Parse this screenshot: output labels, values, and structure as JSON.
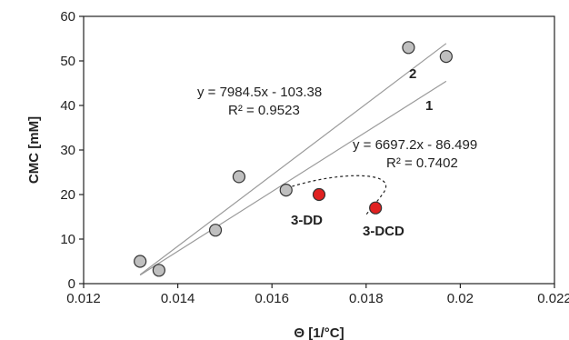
{
  "chart_data": {
    "type": "scatter",
    "xlabel": "Θ [1/°C]",
    "ylabel": "CMC [mM]",
    "xlim": [
      0.012,
      0.022
    ],
    "ylim": [
      0,
      60
    ],
    "xticks": [
      0.012,
      0.014,
      0.016,
      0.018,
      0.02,
      0.022
    ],
    "xtick_labels": [
      "0.012",
      "0.014",
      "0.016",
      "0.018",
      "0.02",
      "0.022"
    ],
    "yticks": [
      0,
      10,
      20,
      30,
      40,
      50,
      60
    ],
    "ytick_labels": [
      "0",
      "10",
      "20",
      "30",
      "40",
      "50",
      "60"
    ],
    "grid": false,
    "series": [
      {
        "color": "#bfbfbf",
        "points": [
          {
            "x": 0.0132,
            "y": 5
          },
          {
            "x": 0.0136,
            "y": 3
          },
          {
            "x": 0.0148,
            "y": 12
          },
          {
            "x": 0.0153,
            "y": 24
          },
          {
            "x": 0.0163,
            "y": 21
          },
          {
            "x": 0.0189,
            "y": 53
          },
          {
            "x": 0.0197,
            "y": 51
          }
        ]
      },
      {
        "color": "#e02020",
        "points": [
          {
            "x": 0.017,
            "y": 20,
            "label": "3-DD"
          },
          {
            "x": 0.0182,
            "y": 17,
            "label": "3-DCD"
          }
        ]
      }
    ],
    "trendlines": [
      {
        "label": "2",
        "slope": 7984.5,
        "intercept": -103.38,
        "x_range": [
          0.0132,
          0.0197
        ],
        "equation": "y = 7984.5x - 103.38",
        "r2": "R² = 0.9523"
      },
      {
        "label": "1",
        "slope": 6697.2,
        "intercept": -86.499,
        "x_range": [
          0.0132,
          0.0197
        ],
        "equation": "y = 6697.2x - 86.499",
        "r2": "R² = 0.7402"
      }
    ]
  }
}
